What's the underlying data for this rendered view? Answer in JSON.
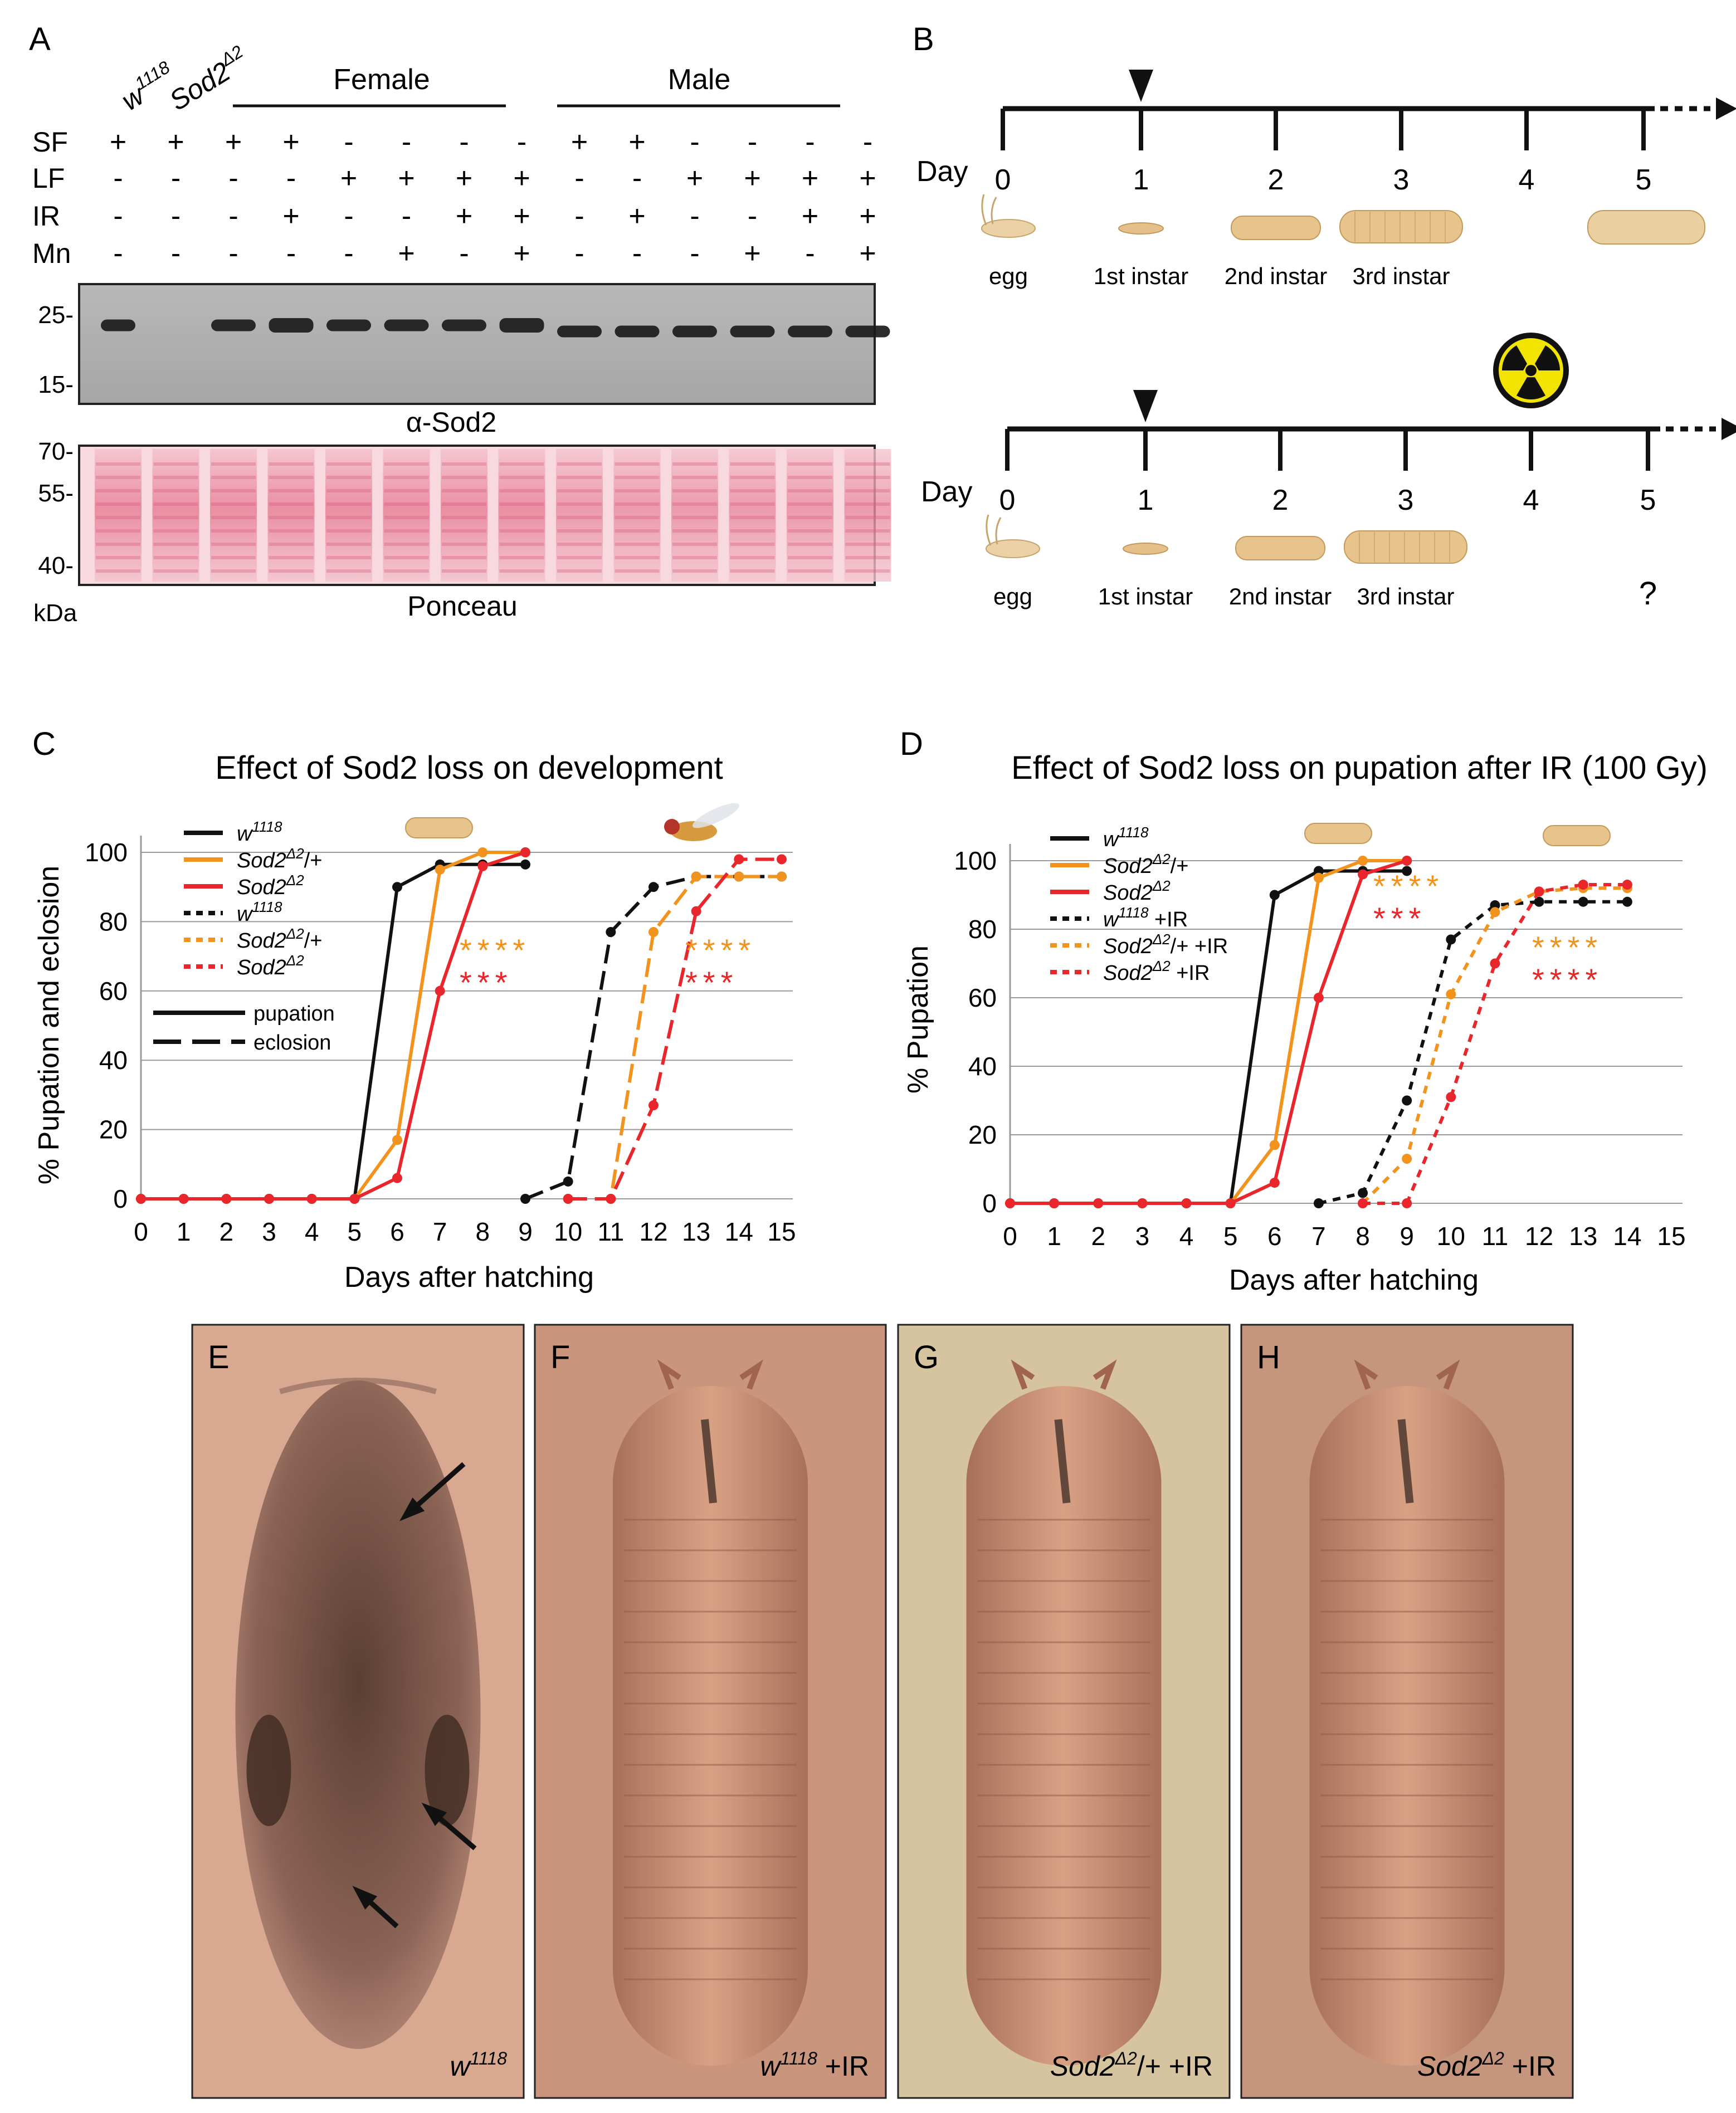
{
  "panels": {
    "A": {
      "letter": "A",
      "lane_headers": {
        "control1": "w",
        "control1_sup": "1118",
        "control2": "Sod2",
        "control2_sup": "Δ2"
      },
      "groups": [
        "Female",
        "Male"
      ],
      "row_labels": [
        "SF",
        "LF",
        "IR",
        "Mn"
      ],
      "rows": {
        "SF": [
          "+",
          "+",
          "+",
          "+",
          "-",
          "-",
          "-",
          "-",
          "+",
          "+",
          "-",
          "-",
          "-",
          "-"
        ],
        "LF": [
          "-",
          "-",
          "-",
          "-",
          "+",
          "+",
          "+",
          "+",
          "-",
          "-",
          "+",
          "+",
          "+",
          "+"
        ],
        "IR": [
          "-",
          "-",
          "-",
          "+",
          "-",
          "-",
          "+",
          "+",
          "-",
          "+",
          "-",
          "-",
          "+",
          "+"
        ],
        "Mn": [
          "-",
          "-",
          "-",
          "-",
          "-",
          "+",
          "-",
          "+",
          "-",
          "-",
          "-",
          "+",
          "-",
          "+"
        ]
      },
      "band_present": [
        true,
        false,
        true,
        true,
        true,
        true,
        true,
        true,
        true,
        true,
        true,
        true,
        true,
        true
      ],
      "blot_ticks": [
        "25-",
        "15-"
      ],
      "blot_label": "α-Sod2",
      "ponceau_ticks": [
        "70-",
        "55-",
        "40-"
      ],
      "ponceau_unit": "kDa",
      "ponceau_label": "Ponceau"
    },
    "B": {
      "letter": "B",
      "day_label": "Day",
      "days": [
        "0",
        "1",
        "2",
        "3",
        "4",
        "5"
      ],
      "stages": [
        "egg",
        "1",
        "2",
        "3"
      ],
      "stage_suffix": [
        " ",
        "st instar",
        "nd instar",
        "rd instar"
      ],
      "unknown": "?",
      "arrowhead_day": 1,
      "radiation_day": 4
    },
    "C": {
      "letter": "C",
      "title": "Effect of Sod2 loss on development",
      "legend": [
        {
          "label": "w",
          "sup": "1118",
          "color": "#111111",
          "style": "solid"
        },
        {
          "label": "Sod2",
          "sup": "Δ2",
          "tail": "/+",
          "color": "#F2931E",
          "style": "solid"
        },
        {
          "label": "Sod2",
          "sup": "Δ2",
          "tail": "",
          "color": "#E8262B",
          "style": "solid"
        },
        {
          "label": "w",
          "sup": "1118",
          "color": "#111111",
          "style": "dotted"
        },
        {
          "label": "Sod2",
          "sup": "Δ2",
          "tail": "/+",
          "color": "#F2931E",
          "style": "dotted"
        },
        {
          "label": "Sod2",
          "sup": "Δ2",
          "tail": "",
          "color": "#E8262B",
          "style": "dotted"
        }
      ],
      "line_key": [
        {
          "label": "pupation",
          "style": "solid"
        },
        {
          "label": "eclosion",
          "style": "dashed"
        }
      ],
      "stars": {
        "orange": "****",
        "red": "***"
      },
      "orange": "#F2931E",
      "red": "#E8262B",
      "black": "#111111"
    },
    "D": {
      "letter": "D",
      "title": "Effect of Sod2 loss on pupation after IR (100 Gy)",
      "legend": [
        {
          "label": "w",
          "sup": "1118",
          "tail": "",
          "color": "#111111",
          "style": "solid"
        },
        {
          "label": "Sod2",
          "sup": "Δ2",
          "tail": "/+",
          "color": "#F2931E",
          "style": "solid"
        },
        {
          "label": "Sod2",
          "sup": "Δ2",
          "tail": "",
          "color": "#E8262B",
          "style": "solid"
        },
        {
          "label": "w",
          "sup": "1118",
          "tail": " +IR",
          "color": "#111111",
          "style": "dotted"
        },
        {
          "label": "Sod2",
          "sup": "Δ2",
          "tail": "/+ +IR",
          "color": "#F2931E",
          "style": "dotted"
        },
        {
          "label": "Sod2",
          "sup": "Δ2",
          "tail": " +IR",
          "color": "#E8262B",
          "style": "dotted"
        }
      ],
      "stars_upper": {
        "orange": "****",
        "red": "***"
      },
      "stars_lower": {
        "orange": "****",
        "red": "****"
      }
    },
    "photos": [
      {
        "letter": "E",
        "caption": "w",
        "sup": "1118",
        "tail": ""
      },
      {
        "letter": "F",
        "caption": "w",
        "sup": "1118",
        "tail": " +IR"
      },
      {
        "letter": "G",
        "caption": "Sod2",
        "sup": "Δ2",
        "tail": "/+ +IR"
      },
      {
        "letter": "H",
        "caption": "Sod2",
        "sup": "Δ2",
        "tail": " +IR"
      }
    ]
  },
  "chart_data": [
    {
      "type": "line",
      "panel": "C",
      "title": "Effect of Sod2 loss on development",
      "xlabel": "Days after hatching",
      "ylabel": "% Pupation and eclosion",
      "xlim": [
        0,
        15
      ],
      "ylim": [
        0,
        100
      ],
      "xticks": [
        0,
        1,
        2,
        3,
        4,
        5,
        6,
        7,
        8,
        9,
        10,
        11,
        12,
        13,
        14,
        15
      ],
      "yticks": [
        0,
        20,
        40,
        60,
        80,
        100
      ],
      "grid": "horizontal",
      "series": [
        {
          "name": "w1118 pupation",
          "color": "#111111",
          "style": "solid",
          "x": [
            0,
            1,
            2,
            3,
            4,
            5,
            6,
            7,
            8,
            9
          ],
          "y": [
            0,
            0,
            0,
            0,
            0,
            0,
            90,
            96.5,
            96.5,
            96.5
          ]
        },
        {
          "name": "Sod2Δ2/+ pupation",
          "color": "#F2931E",
          "style": "solid",
          "x": [
            0,
            1,
            2,
            3,
            4,
            5,
            6,
            7,
            8,
            9
          ],
          "y": [
            0,
            0,
            0,
            0,
            0,
            0,
            17,
            95,
            100,
            100
          ]
        },
        {
          "name": "Sod2Δ2 pupation",
          "color": "#E8262B",
          "style": "solid",
          "x": [
            0,
            1,
            2,
            3,
            4,
            5,
            6,
            7,
            8,
            9
          ],
          "y": [
            0,
            0,
            0,
            0,
            0,
            0,
            6,
            60,
            96,
            100
          ]
        },
        {
          "name": "w1118 eclosion",
          "color": "#111111",
          "style": "dashed",
          "x": [
            9,
            10,
            11,
            12,
            13,
            14,
            15
          ],
          "y": [
            0,
            5,
            77,
            90,
            93,
            93,
            93
          ]
        },
        {
          "name": "Sod2Δ2/+ eclosion",
          "color": "#F2931E",
          "style": "dashed",
          "x": [
            10,
            11,
            12,
            13,
            14,
            15
          ],
          "y": [
            0,
            0,
            77,
            93,
            93,
            93
          ]
        },
        {
          "name": "Sod2Δ2 eclosion",
          "color": "#E8262B",
          "style": "dashed",
          "x": [
            10,
            11,
            12,
            13,
            14,
            15
          ],
          "y": [
            0,
            0,
            27,
            83,
            98,
            98
          ]
        }
      ]
    },
    {
      "type": "line",
      "panel": "D",
      "title": "Effect of Sod2 loss on pupation after IR (100 Gy)",
      "xlabel": "Days after hatching",
      "ylabel": "% Pupation",
      "xlim": [
        0,
        15
      ],
      "ylim": [
        0,
        100
      ],
      "xticks": [
        0,
        1,
        2,
        3,
        4,
        5,
        6,
        7,
        8,
        9,
        10,
        11,
        12,
        13,
        14,
        15
      ],
      "yticks": [
        0,
        20,
        40,
        60,
        80,
        100
      ],
      "grid": "horizontal",
      "series": [
        {
          "name": "w1118",
          "color": "#111111",
          "style": "solid",
          "x": [
            0,
            1,
            2,
            3,
            4,
            5,
            6,
            7,
            8,
            9
          ],
          "y": [
            0,
            0,
            0,
            0,
            0,
            0,
            90,
            97,
            97,
            97
          ]
        },
        {
          "name": "Sod2Δ2/+",
          "color": "#F2931E",
          "style": "solid",
          "x": [
            0,
            1,
            2,
            3,
            4,
            5,
            6,
            7,
            8,
            9
          ],
          "y": [
            0,
            0,
            0,
            0,
            0,
            0,
            17,
            95,
            100,
            100
          ]
        },
        {
          "name": "Sod2Δ2",
          "color": "#E8262B",
          "style": "solid",
          "x": [
            0,
            1,
            2,
            3,
            4,
            5,
            6,
            7,
            8,
            9
          ],
          "y": [
            0,
            0,
            0,
            0,
            0,
            0,
            6,
            60,
            96,
            100
          ]
        },
        {
          "name": "w1118 +IR",
          "color": "#111111",
          "style": "dashed",
          "x": [
            7,
            8,
            9,
            10,
            11,
            12,
            13,
            14
          ],
          "y": [
            0,
            3,
            30,
            77,
            87,
            88,
            88,
            88
          ]
        },
        {
          "name": "Sod2Δ2/+ +IR",
          "color": "#F2931E",
          "style": "dashed",
          "x": [
            8,
            9,
            10,
            11,
            12,
            13,
            14
          ],
          "y": [
            0,
            13,
            61,
            85,
            91,
            92,
            92
          ]
        },
        {
          "name": "Sod2Δ2 +IR",
          "color": "#E8262B",
          "style": "dashed",
          "x": [
            8,
            9,
            10,
            11,
            12,
            13,
            14
          ],
          "y": [
            0,
            0,
            31,
            70,
            91,
            93,
            93
          ]
        }
      ]
    }
  ]
}
